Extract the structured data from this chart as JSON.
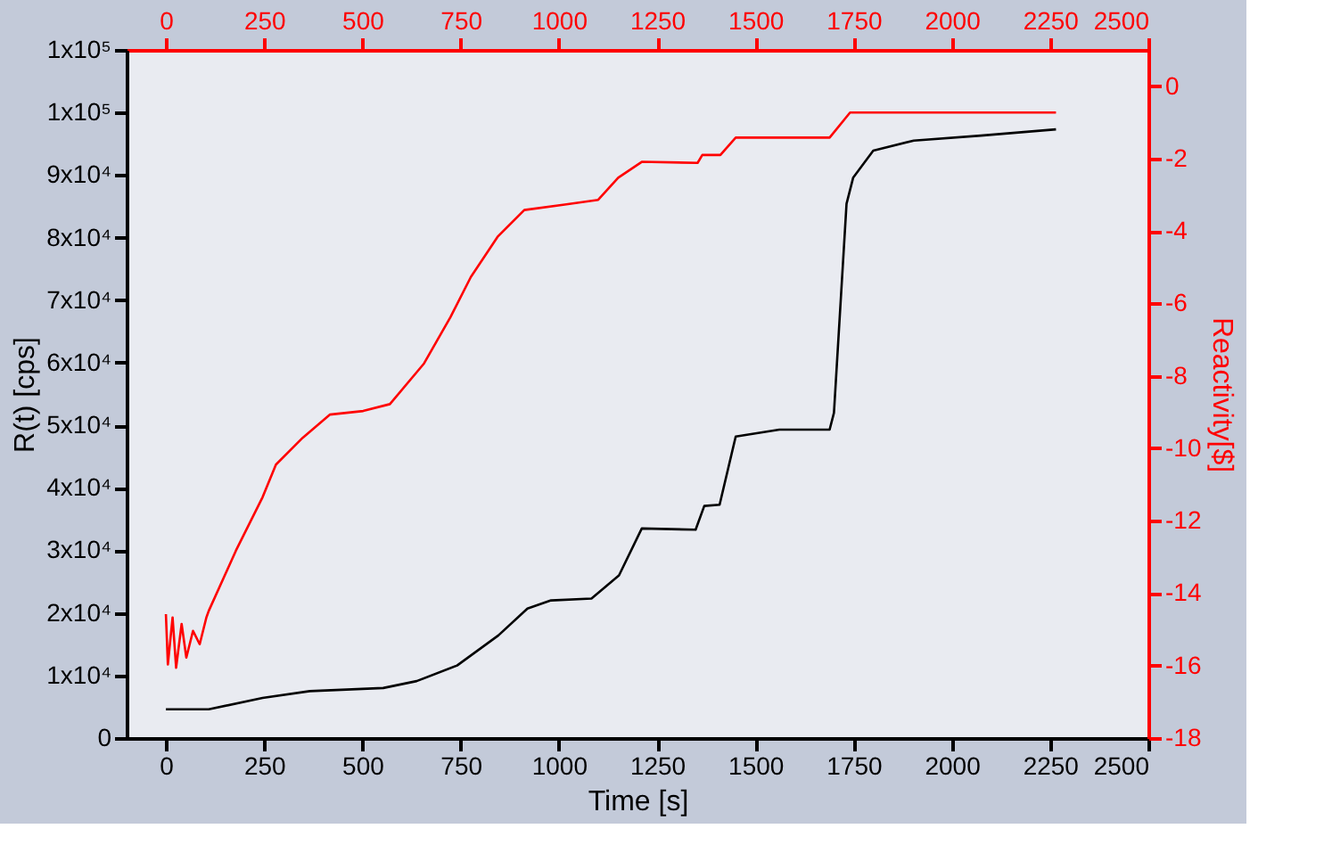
{
  "chart_data": {
    "type": "line",
    "xlabel": "Time [s]",
    "ylabel": "R(t) [cps]",
    "y2label": "Reactivity[$]",
    "xlim": [
      -100,
      2500
    ],
    "xticks": [
      0,
      250,
      500,
      750,
      1000,
      1250,
      1500,
      1750,
      2000,
      2250,
      2500
    ],
    "x2lim": [
      -100,
      2500
    ],
    "x2ticks": [
      0,
      250,
      500,
      750,
      1000,
      1250,
      1500,
      1750,
      2000,
      2250,
      2500
    ],
    "ylim": [
      0,
      110000
    ],
    "yticks": [
      0,
      {
        "value": 10000,
        "label": "1x10⁴"
      },
      {
        "value": 20000,
        "label": "2x10⁴"
      },
      {
        "value": 30000,
        "label": "3x10⁴"
      },
      {
        "value": 40000,
        "label": "4x10⁴"
      },
      {
        "value": 50000,
        "label": "5x10⁴"
      },
      {
        "value": 60000,
        "label": "6x10⁴"
      },
      {
        "value": 70000,
        "label": "7x10⁴"
      },
      {
        "value": 80000,
        "label": "8x10⁴"
      },
      {
        "value": 90000,
        "label": "9x10⁴"
      },
      {
        "value": 100000,
        "label": "1x10⁵"
      },
      {
        "value": 110000,
        "label": "1x10⁵"
      }
    ],
    "y2lim": [
      -18,
      1
    ],
    "y2ticks": [
      0,
      -2,
      -4,
      -6,
      -8,
      -10,
      -12,
      -14,
      -16,
      -18
    ],
    "grid": false,
    "marker": "none",
    "line_style": "solid",
    "series": [
      {
        "color": "#000000",
        "x": [
          0,
          109,
          246,
          366,
          553,
          638,
          741,
          846,
          920,
          980,
          1083,
          1153,
          1211,
          1348,
          1370,
          1409,
          1450,
          1561,
          1689,
          1700,
          1732,
          1749,
          1800,
          1903,
          2074,
          2265
        ],
        "values": [
          4600,
          4600,
          6400,
          7500,
          8000,
          9100,
          11600,
          16400,
          20700,
          22000,
          22300,
          26000,
          33500,
          33300,
          37100,
          37300,
          48200,
          49300,
          49300,
          52000,
          85400,
          89600,
          93900,
          95500,
          96300,
          97300
        ]
      },
      {
        "color": "#ff0000",
        "axis": "y2",
        "x": [
          0,
          5,
          17,
          26,
          40,
          52,
          69,
          86,
          103,
          109,
          178,
          246,
          280,
          348,
          417,
          502,
          570,
          656,
          724,
          776,
          844,
          912,
          1015,
          1100,
          1151,
          1211,
          1353,
          1365,
          1411,
          1450,
          1689,
          1741,
          2265
        ],
        "values": [
          -14.58,
          -15.97,
          -14.67,
          -16.06,
          -14.85,
          -15.78,
          -15.04,
          -15.41,
          -14.67,
          -14.49,
          -12.83,
          -11.35,
          -10.45,
          -9.71,
          -9.07,
          -8.97,
          -8.78,
          -7.67,
          -6.38,
          -5.27,
          -4.16,
          -3.42,
          -3.27,
          -3.14,
          -2.53,
          -2.09,
          -2.12,
          -1.9,
          -1.9,
          -1.42,
          -1.42,
          -0.73,
          -0.73
        ]
      }
    ]
  }
}
